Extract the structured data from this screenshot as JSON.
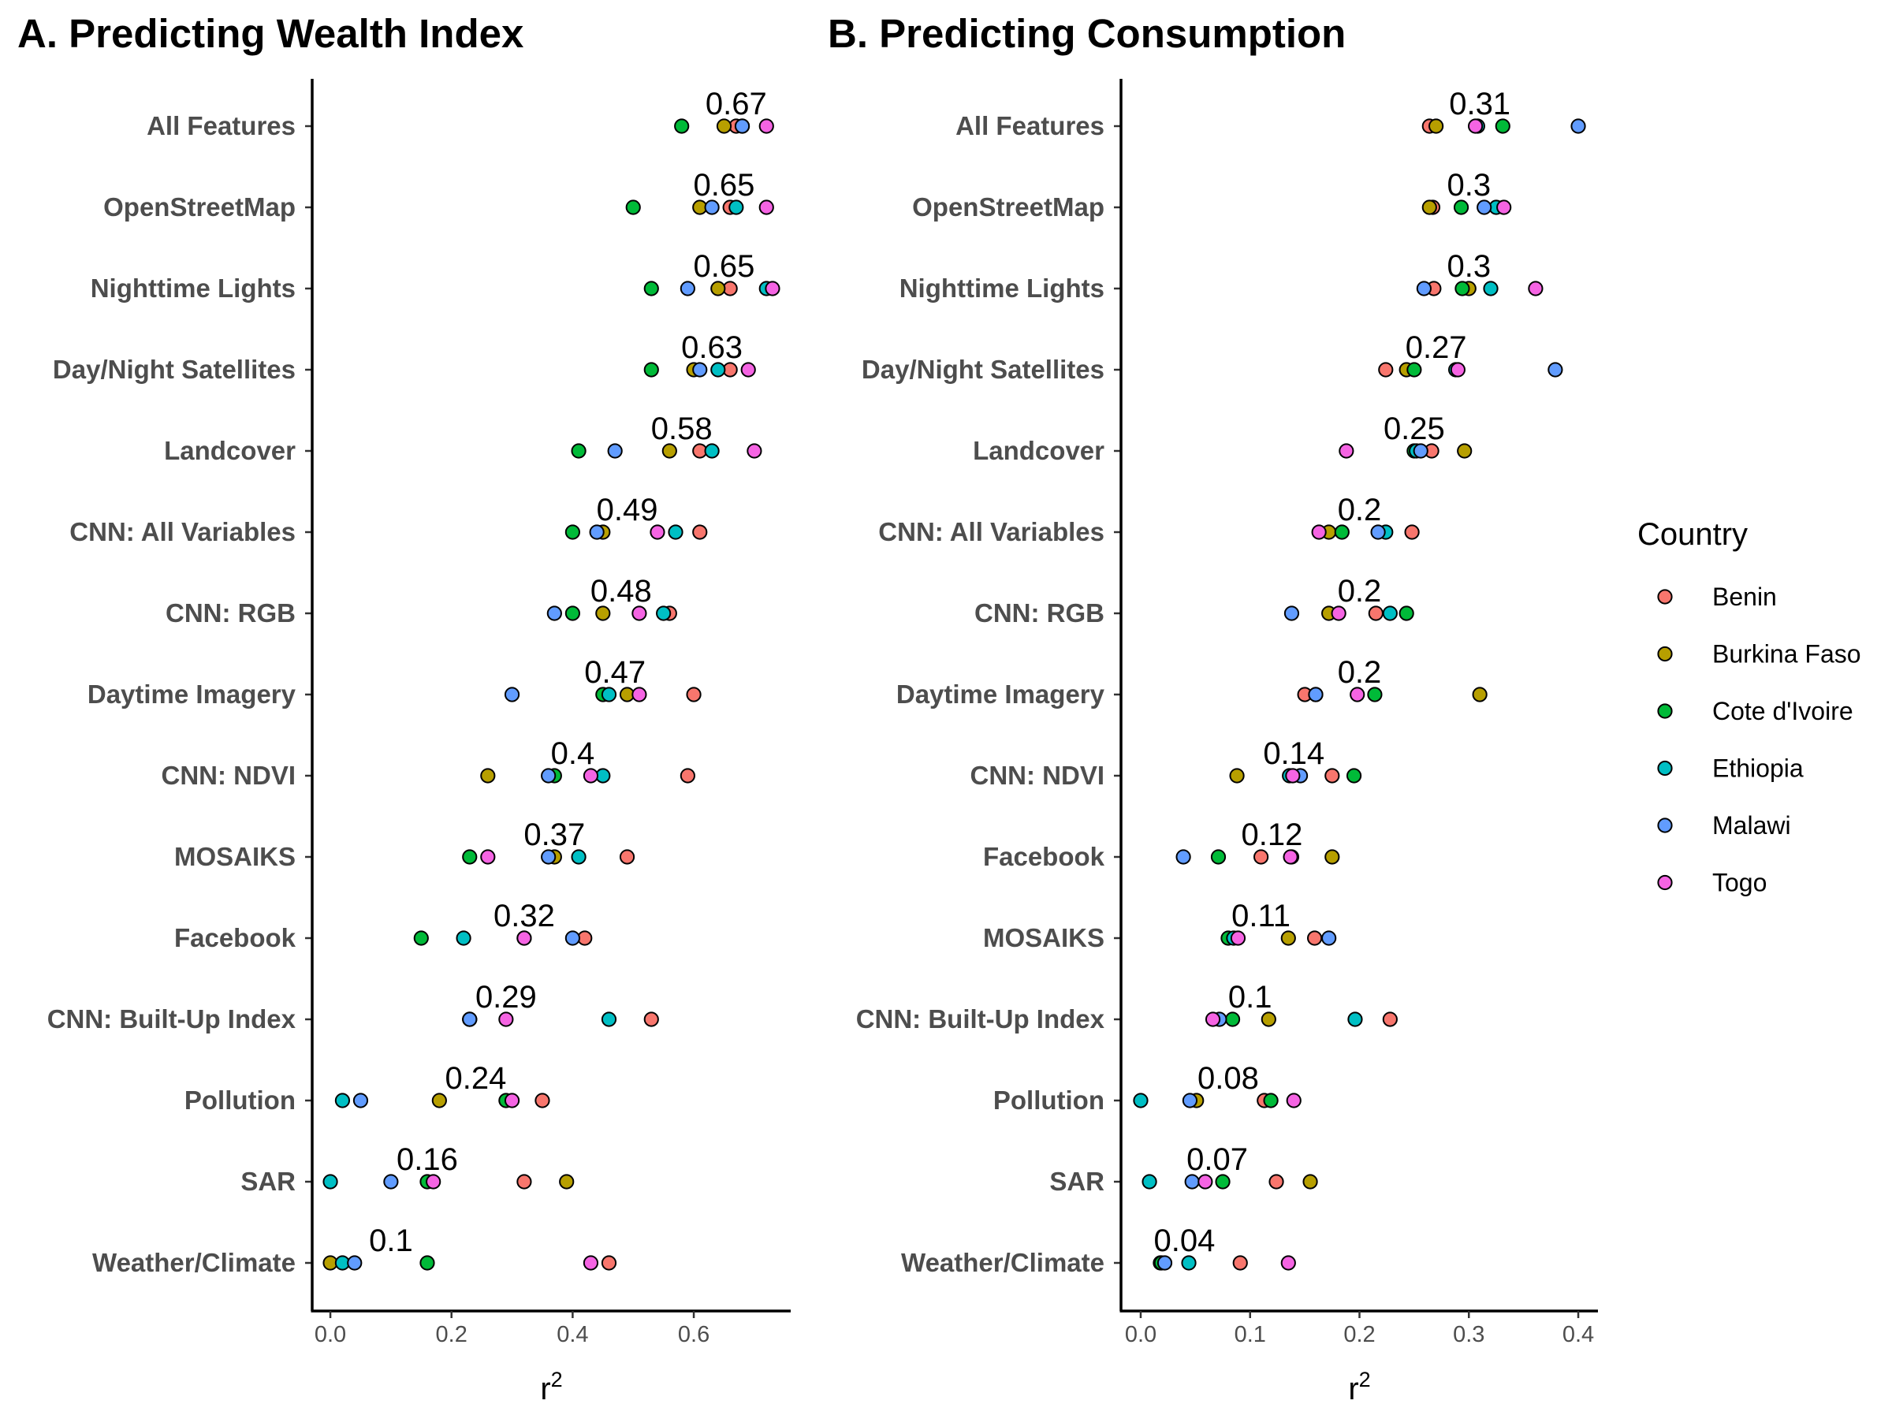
{
  "countries": [
    "Benin",
    "Burkina Faso",
    "Cote d'Ivoire",
    "Ethiopia",
    "Malawi",
    "Togo"
  ],
  "colors": {
    "Benin": "#F8766D",
    "Burkina Faso": "#B79F00",
    "Cote d'Ivoire": "#00BA38",
    "Ethiopia": "#00BFC4",
    "Malawi": "#619CFF",
    "Togo": "#F564E3"
  },
  "legend": {
    "title": "Country",
    "placement": "right"
  },
  "chart_data": [
    {
      "type": "scatter",
      "title": "A. Predicting Wealth Index",
      "xlabel": "r",
      "xlabel_superscript": "2",
      "xlim": [
        -0.03,
        0.76
      ],
      "xticks": [
        0.0,
        0.2,
        0.4,
        0.6
      ],
      "xtick_labels": [
        "0.0",
        "0.2",
        "0.4",
        "0.6"
      ],
      "categories": [
        "All Features",
        "OpenStreetMap",
        "Nighttime Lights",
        "Day/Night Satellites",
        "Landcover",
        "CNN: All Variables",
        "CNN: RGB",
        "Daytime Imagery",
        "CNN: NDVI",
        "MOSAIKS",
        "Facebook",
        "CNN: Built-Up Index",
        "Pollution",
        "SAR",
        "Weather/Climate"
      ],
      "mean_labels": [
        "0.67",
        "0.65",
        "0.65",
        "0.63",
        "0.58",
        "0.49",
        "0.48",
        "0.47",
        "0.4",
        "0.37",
        "0.32",
        "0.29",
        "0.24",
        "0.16",
        "0.1"
      ],
      "series": [
        {
          "name": "Benin",
          "values": [
            0.67,
            0.66,
            0.66,
            0.66,
            0.61,
            0.61,
            0.56,
            0.6,
            0.59,
            0.49,
            0.42,
            0.53,
            0.35,
            0.32,
            0.46
          ]
        },
        {
          "name": "Burkina Faso",
          "values": [
            0.65,
            0.61,
            0.64,
            0.6,
            0.56,
            0.45,
            0.45,
            0.49,
            0.26,
            0.37,
            0.32,
            0.23,
            0.18,
            0.39,
            0.0
          ]
        },
        {
          "name": "Cote d'Ivoire",
          "values": [
            0.58,
            0.5,
            0.53,
            0.53,
            0.41,
            0.4,
            0.4,
            0.45,
            0.37,
            0.23,
            0.15,
            0.23,
            0.29,
            0.16,
            0.16
          ]
        },
        {
          "name": "Ethiopia",
          "values": [
            0.68,
            0.67,
            0.72,
            0.64,
            0.63,
            0.57,
            0.55,
            0.46,
            0.45,
            0.41,
            0.22,
            0.46,
            0.02,
            0.0,
            0.02
          ]
        },
        {
          "name": "Malawi",
          "values": [
            0.68,
            0.63,
            0.59,
            0.61,
            0.47,
            0.44,
            0.37,
            0.3,
            0.36,
            0.36,
            0.4,
            0.23,
            0.05,
            0.1,
            0.04
          ]
        },
        {
          "name": "Togo",
          "values": [
            0.72,
            0.72,
            0.73,
            0.69,
            0.7,
            0.54,
            0.51,
            0.51,
            0.43,
            0.26,
            0.32,
            0.29,
            0.3,
            0.17,
            0.43
          ]
        }
      ]
    },
    {
      "type": "scatter",
      "title": "B. Predicting Consumption",
      "xlabel": "r",
      "xlabel_superscript": "2",
      "xlim": [
        -0.018,
        0.418
      ],
      "xticks": [
        0.0,
        0.1,
        0.2,
        0.3,
        0.4
      ],
      "xtick_labels": [
        "0.0",
        "0.1",
        "0.2",
        "0.3",
        "0.4"
      ],
      "categories": [
        "All Features",
        "OpenStreetMap",
        "Nighttime Lights",
        "Day/Night Satellites",
        "Landcover",
        "CNN: All Variables",
        "CNN: RGB",
        "Daytime Imagery",
        "CNN: NDVI",
        "Facebook",
        "MOSAIKS",
        "CNN: Built-Up Index",
        "Pollution",
        "SAR",
        "Weather/Climate"
      ],
      "mean_labels": [
        "0.31",
        "0.3",
        "0.3",
        "0.27",
        "0.25",
        "0.2",
        "0.2",
        "0.2",
        "0.14",
        "0.12",
        "0.11",
        "0.1",
        "0.08",
        "0.07",
        "0.04"
      ],
      "series": [
        {
          "name": "Benin",
          "values": [
            0.264,
            0.267,
            0.268,
            0.224,
            0.266,
            0.248,
            0.215,
            0.15,
            0.175,
            0.11,
            0.159,
            0.228,
            0.113,
            0.124,
            0.091
          ]
        },
        {
          "name": "Burkina Faso",
          "values": [
            0.27,
            0.264,
            0.3,
            0.243,
            0.296,
            0.172,
            0.172,
            0.31,
            0.088,
            0.175,
            0.135,
            0.117,
            0.051,
            0.155,
            0.018
          ]
        },
        {
          "name": "Cote d'Ivoire",
          "values": [
            0.331,
            0.293,
            0.294,
            0.25,
            0.25,
            0.184,
            0.243,
            0.214,
            0.195,
            0.071,
            0.08,
            0.084,
            0.119,
            0.075,
            0.019
          ]
        },
        {
          "name": "Ethiopia",
          "values": [
            0.308,
            0.325,
            0.32,
            0.288,
            0.252,
            0.224,
            0.228,
            0.16,
            0.136,
            0.138,
            0.085,
            0.196,
            0.0,
            0.008,
            0.044
          ]
        },
        {
          "name": "Malawi",
          "values": [
            0.4,
            0.314,
            0.259,
            0.379,
            0.256,
            0.217,
            0.138,
            0.16,
            0.146,
            0.039,
            0.172,
            0.072,
            0.045,
            0.047,
            0.022
          ]
        },
        {
          "name": "Togo",
          "values": [
            0.306,
            0.332,
            0.361,
            0.29,
            0.188,
            0.163,
            0.181,
            0.198,
            0.139,
            0.137,
            0.089,
            0.066,
            0.14,
            0.059,
            0.135
          ]
        }
      ]
    }
  ]
}
